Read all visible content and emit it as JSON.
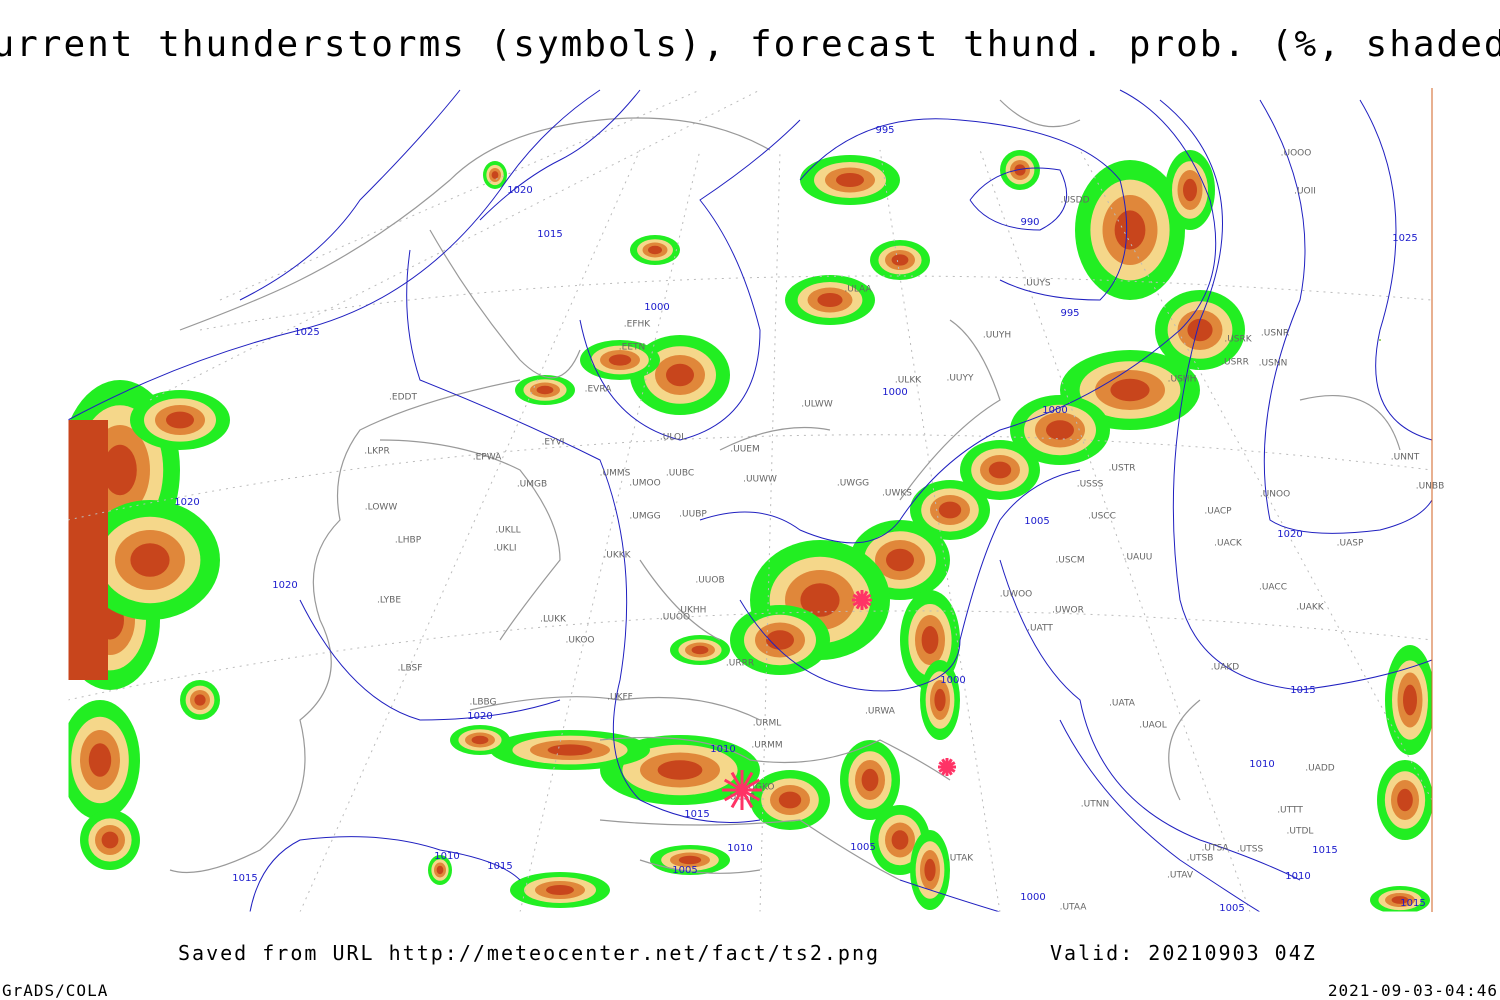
{
  "title": "Current thunderstorms (symbols), forecast thund. prob. (%, shaded)",
  "isobar_labels": [
    995,
    1020,
    1015,
    1000,
    990,
    995,
    1025,
    1025,
    1000,
    1000,
    1020,
    1005,
    1020,
    1020,
    1000,
    1015,
    1020,
    1010,
    1010,
    1015,
    1010,
    1015,
    1010,
    1005,
    1005,
    1015,
    1010,
    1015,
    1000,
    1005,
    1015
  ],
  "stations": [
    ".ULAA",
    ".UUYS",
    ".UUYH",
    ".ULKK",
    ".UUYY",
    ".ULWW",
    ".UUEM",
    ".UUWW",
    ".UWGG",
    ".UWKS",
    ".USTR",
    ".USSS",
    ".USCC",
    ".USCM",
    ".UAUU",
    ".UACK",
    ".UACP",
    ".UNOO",
    ".UNNT",
    ".UNBB",
    ".UASP",
    ".UACC",
    ".UAKK",
    ".UATT",
    ".UWOO",
    ".UWOR",
    ".UAKD",
    ".UATA",
    ".UAOL",
    ".UADD",
    ".UTNN",
    ".UTSA",
    ".UTSB",
    ".UTSS",
    ".UTAV",
    ".UTDL",
    ".UTTT",
    ".UTAK",
    ".UTAA",
    ".EDDT",
    ".LKPR",
    ".EPWA",
    ".UMMS",
    ".UMOO",
    ".UMGB",
    ".LOWW",
    ".LHBP",
    ".UKLL",
    ".UKLI",
    ".UKKK",
    ".UMGG",
    ".UUBP",
    ".UUBC",
    ".UUOB",
    ".LYBE",
    ".LUKK",
    ".UKOO",
    ".LBSF",
    ".LBBG",
    ".UKFF",
    ".UUOO",
    ".UKHH",
    ".URRR",
    ".URWA",
    ".URMM",
    ".URML",
    ".UGSB",
    ".UGKO",
    ".ULOL",
    ".EFHK",
    ".EETN",
    ".EVRA",
    ".EYVI",
    ".UOOO",
    ".UOII",
    ".USNR",
    ".USNN",
    ".USRK",
    ".USRR",
    ".USHH",
    ".USDD"
  ],
  "footer": {
    "source": "Saved from URL http://meteocenter.net/fact/ts2.png",
    "valid": "Valid: 20210903 04Z",
    "software": "GrADS/COLA",
    "timestamp": "2021-09-03-04:46"
  }
}
